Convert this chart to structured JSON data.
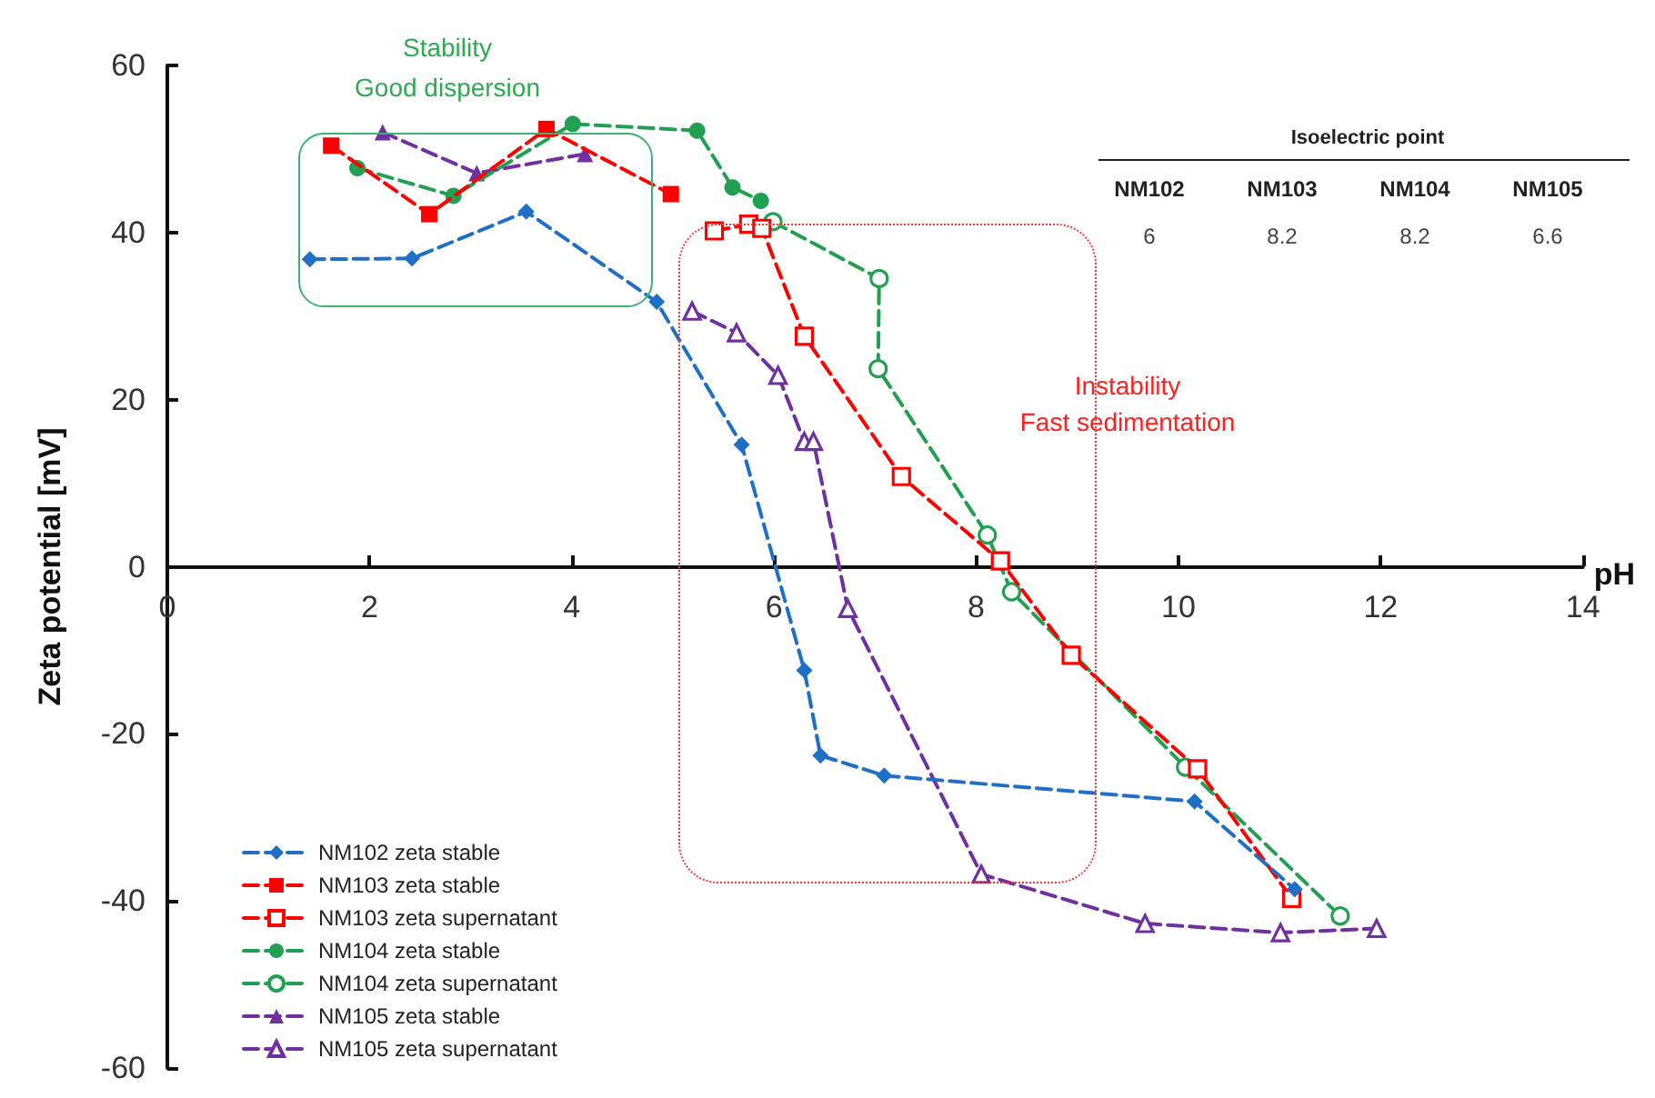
{
  "chart_data": {
    "type": "line",
    "xlabel": "pH",
    "ylabel": "Zeta potential [mV]",
    "xlim": [
      0,
      14
    ],
    "xticks": [
      0,
      2,
      4,
      6,
      8,
      10,
      12,
      14
    ],
    "ylim": [
      -60,
      60
    ],
    "yticks": [
      -60,
      -40,
      -20,
      0,
      20,
      40,
      60
    ],
    "grid": false,
    "legend": "bottom left",
    "line_style": "dashed",
    "series": [
      {
        "name": "NM102 zeta stable",
        "color": "#1f6fc5",
        "marker": "diamond",
        "x": [
          1.41,
          2.42,
          3.55,
          4.84,
          5.68,
          6.3,
          6.46,
          7.09,
          10.16,
          11.15
        ],
        "values": [
          36.8,
          36.9,
          42.5,
          31.7,
          14.6,
          -12.4,
          -22.6,
          -25,
          -28.1,
          -38.6
        ]
      },
      {
        "name": "NM103 zeta stable",
        "color": "#ff0000",
        "marker": "square",
        "x": [
          1.62,
          2.59,
          3.75,
          4.98
        ],
        "values": [
          50.4,
          42.2,
          52.4,
          44.6
        ]
      },
      {
        "name": "NM103 zeta supernatant",
        "color": "#ff0000",
        "marker": "square",
        "x": [
          5.41,
          5.75,
          5.88,
          6.3,
          7.26,
          8.24,
          8.94,
          10.19,
          11.12
        ],
        "values": [
          40.2,
          41,
          40.5,
          27.6,
          10.8,
          0.7,
          -10.6,
          -24.2,
          -39.7
        ]
      },
      {
        "name": "NM104 zeta stable",
        "color": "#20a050",
        "marker": "circle",
        "x": [
          1.88,
          2.83,
          4.01,
          5.24,
          5.59,
          5.87
        ],
        "values": [
          47.7,
          44.4,
          53,
          52.2,
          45.4,
          43.8
        ]
      },
      {
        "name": "NM104 zeta supernatant",
        "color": "#20a050",
        "marker": "circle",
        "x": [
          5.99,
          7.04,
          7.03,
          8.11,
          8.35,
          10.07,
          11.6
        ],
        "values": [
          41.3,
          34.5,
          23.7,
          3.8,
          -3,
          -24,
          -41.8
        ]
      },
      {
        "name": "NM105 zeta stable",
        "color": "#7030a0",
        "marker": "triangle",
        "x": [
          2.13,
          3.06,
          4.13
        ],
        "values": [
          52,
          47.1,
          49.4
        ]
      },
      {
        "name": "NM105 zeta supernatant",
        "color": "#7030a0",
        "marker": "triangle",
        "x": [
          5.19,
          5.63,
          6.04,
          6.3,
          6.39,
          6.73,
          8.05,
          9.67,
          11.01,
          11.96
        ],
        "values": [
          30.6,
          28,
          22.9,
          15,
          15,
          -5,
          -36.8,
          -42.7,
          -43.8,
          -43.3
        ]
      }
    ],
    "annotations": [
      "Stability",
      "Good dispersion",
      "Instability",
      "Fast sedimentation",
      "Isoelectric point",
      "NM102",
      "NM103",
      "NM104",
      "NM105",
      "6",
      "8.2",
      "8.2",
      "6.6"
    ]
  }
}
